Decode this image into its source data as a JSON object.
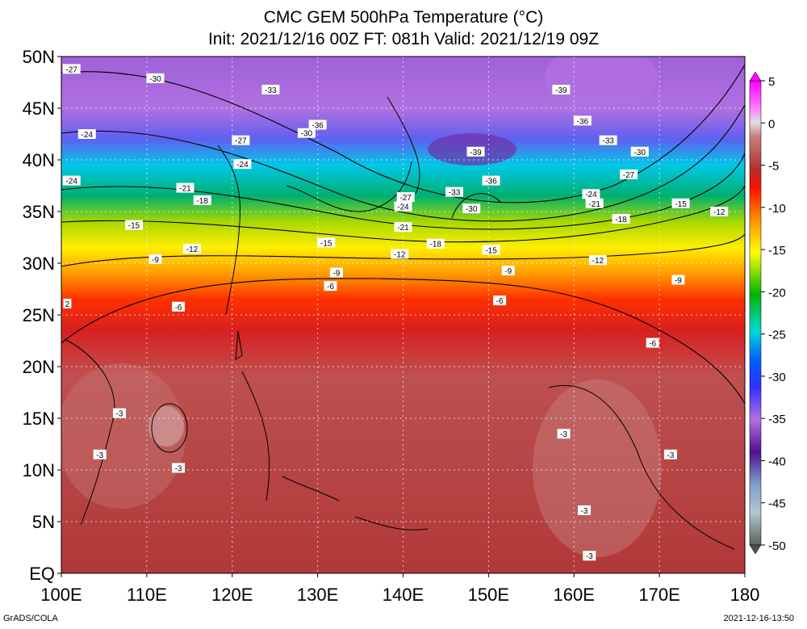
{
  "header": {
    "title": "CMC GEM 500hPa Temperature (°C)",
    "subtitle": "Init: 2021/12/16 00Z  FT: 081h  Valid: 2021/12/19 09Z"
  },
  "axes": {
    "y_labels": [
      "50N",
      "45N",
      "40N",
      "35N",
      "30N",
      "25N",
      "20N",
      "15N",
      "10N",
      "5N",
      "EQ"
    ],
    "x_labels": [
      "100E",
      "110E",
      "120E",
      "130E",
      "140E",
      "150E",
      "160E",
      "170E",
      "180"
    ]
  },
  "colorbar": {
    "labels": [
      "5",
      "0",
      "-5",
      "-10",
      "-15",
      "-20",
      "-25",
      "-30",
      "-35",
      "-40",
      "-45",
      "-50"
    ],
    "colors": [
      "#ff00ff",
      "#ff40ff",
      "#ff80ff",
      "#ffb3ff",
      "#e0e0e0",
      "#c8a8a8",
      "#c48080",
      "#bc5858",
      "#b43434",
      "#c81818",
      "#e00000",
      "#ff1800",
      "#ff4800",
      "#ff7800",
      "#ffa000",
      "#ffc800",
      "#ffe800",
      "#ffff00",
      "#d0ec00",
      "#a0d800",
      "#60c400",
      "#00b400",
      "#00a030",
      "#00b870",
      "#00d0b0",
      "#00e0ff",
      "#00b4ff",
      "#0080ff",
      "#0040ff",
      "#0000ee",
      "#3030ff",
      "#6060ff",
      "#8a3cff",
      "#a050e0",
      "#b870d8",
      "#d090e8",
      "#c070d0",
      "#9040c0",
      "#7020a8",
      "#50108c",
      "#602080",
      "#5050a0",
      "#6880b8",
      "#80a0c8",
      "#a0c0d8",
      "#b0c8d0",
      "#a0a8b0",
      "#8c8c8c",
      "#707070",
      "#505050"
    ]
  },
  "contour_labels": [
    {
      "text": "-27",
      "lon": 101.2,
      "lat": 48.8
    },
    {
      "text": "-30",
      "lon": 111,
      "lat": 47.9
    },
    {
      "text": "-33",
      "lon": 124.5,
      "lat": 46.8
    },
    {
      "text": "-39",
      "lon": 158.5,
      "lat": 46.8
    },
    {
      "text": "-36",
      "lon": 130,
      "lat": 43.4
    },
    {
      "text": "-36",
      "lon": 161,
      "lat": 43.8
    },
    {
      "text": "-30",
      "lon": 128.7,
      "lat": 42.6
    },
    {
      "text": "-24",
      "lon": 103,
      "lat": 42.5
    },
    {
      "text": "-27",
      "lon": 121,
      "lat": 41.9
    },
    {
      "text": "-33",
      "lon": 164,
      "lat": 41.9
    },
    {
      "text": "-39",
      "lon": 148.5,
      "lat": 40.8
    },
    {
      "text": "-30",
      "lon": 167.7,
      "lat": 40.8
    },
    {
      "text": "-24",
      "lon": 121.2,
      "lat": 39.6
    },
    {
      "text": "-27",
      "lon": 166.4,
      "lat": 38.6
    },
    {
      "text": "-36",
      "lon": 150.3,
      "lat": 38
    },
    {
      "text": "-24",
      "lon": 101.2,
      "lat": 38
    },
    {
      "text": "-21",
      "lon": 114.5,
      "lat": 37.3
    },
    {
      "text": "-33",
      "lon": 146,
      "lat": 36.9
    },
    {
      "text": "-24",
      "lon": 162,
      "lat": 36.7
    },
    {
      "text": "-27",
      "lon": 140.3,
      "lat": 36.4
    },
    {
      "text": "-18",
      "lon": 116.5,
      "lat": 36.1
    },
    {
      "text": "-21",
      "lon": 162.4,
      "lat": 35.8
    },
    {
      "text": "-24",
      "lon": 140,
      "lat": 35.5
    },
    {
      "text": "-30",
      "lon": 148,
      "lat": 35.3
    },
    {
      "text": "-15",
      "lon": 172.5,
      "lat": 35.8
    },
    {
      "text": "-12",
      "lon": 177,
      "lat": 35
    },
    {
      "text": "-18",
      "lon": 165.5,
      "lat": 34.3
    },
    {
      "text": "-15",
      "lon": 108.5,
      "lat": 33.7
    },
    {
      "text": "-21",
      "lon": 140,
      "lat": 33.5
    },
    {
      "text": "-18",
      "lon": 143.8,
      "lat": 31.9
    },
    {
      "text": "-15",
      "lon": 131,
      "lat": 32
    },
    {
      "text": "-12",
      "lon": 115.3,
      "lat": 31.4
    },
    {
      "text": "-15",
      "lon": 150.3,
      "lat": 31.3
    },
    {
      "text": "-12",
      "lon": 139.6,
      "lat": 30.9
    },
    {
      "text": "-9",
      "lon": 111,
      "lat": 30.4
    },
    {
      "text": "-12",
      "lon": 162.8,
      "lat": 30.3
    },
    {
      "text": "-9",
      "lon": 152.3,
      "lat": 29.3
    },
    {
      "text": "-9",
      "lon": 132.2,
      "lat": 29.1
    },
    {
      "text": "-9",
      "lon": 172.2,
      "lat": 28.4
    },
    {
      "text": "-6",
      "lon": 131.5,
      "lat": 27.8
    },
    {
      "text": "-6",
      "lon": 151.3,
      "lat": 26.4
    },
    {
      "text": "-6",
      "lon": 113.7,
      "lat": 25.8
    },
    {
      "text": "2",
      "lon": 100.7,
      "lat": 26.1
    },
    {
      "text": "-6",
      "lon": 169.2,
      "lat": 22.3
    },
    {
      "text": "-3",
      "lon": 106.8,
      "lat": 15.5
    },
    {
      "text": "-3",
      "lon": 158.8,
      "lat": 13.5
    },
    {
      "text": "-3",
      "lon": 171.3,
      "lat": 11.5
    },
    {
      "text": "-3",
      "lon": 104.5,
      "lat": 11.5
    },
    {
      "text": "-3",
      "lon": 113.7,
      "lat": 10.2
    },
    {
      "text": "-3",
      "lon": 161.2,
      "lat": 6.1
    },
    {
      "text": "-3",
      "lon": 161.8,
      "lat": 1.7
    }
  ],
  "footer": {
    "left": "GrADS/COLA",
    "right": "2021-12-16-13:50"
  }
}
